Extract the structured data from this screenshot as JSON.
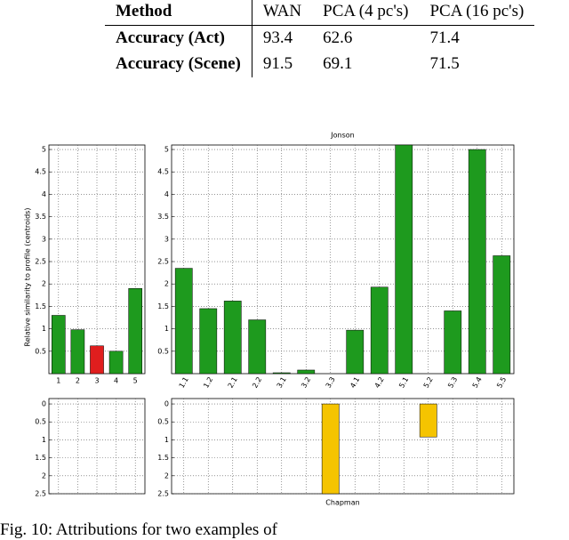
{
  "table": {
    "header": [
      "Method",
      "WAN",
      "PCA (4 pc's)",
      "PCA (16 pc's)"
    ],
    "rows": [
      [
        "Accuracy (Act)",
        "93.4",
        "62.6",
        "71.4"
      ],
      [
        "Accuracy (Scene)",
        "91.5",
        "69.1",
        "71.5"
      ]
    ]
  },
  "chart_data": [
    {
      "type": "bar",
      "y_label": "Relative similarity to profile (centroids)",
      "categories": [
        "1",
        "2",
        "3",
        "4",
        "5"
      ],
      "values": [
        1.3,
        0.98,
        0.62,
        0.5,
        1.9
      ],
      "colors": [
        "#1e9a1e",
        "#1e9a1e",
        "#e01e1e",
        "#1e9a1e",
        "#1e9a1e"
      ],
      "ylim": [
        0,
        5.1
      ],
      "yticks": [
        0.5,
        1,
        1.5,
        2,
        2.5,
        3,
        3.5,
        4,
        4.5,
        5
      ],
      "grid": true
    },
    {
      "type": "bar",
      "title": "Jonson",
      "categories": [
        "1.1",
        "1.2",
        "2.1",
        "2.2",
        "3.1",
        "3.2",
        "3.3",
        "4.1",
        "4.2",
        "5.1",
        "5.2",
        "5.3",
        "5.4",
        "5.5"
      ],
      "values": [
        2.35,
        1.45,
        1.62,
        1.2,
        0.02,
        0.08,
        0,
        0.97,
        1.93,
        5.1,
        0,
        1.4,
        5.0,
        2.63
      ],
      "color": "#1e9a1e",
      "ylim": [
        0,
        5.1
      ],
      "yticks": [
        0.5,
        1,
        1.5,
        2,
        2.5,
        3,
        3.5,
        4,
        4.5,
        5
      ],
      "grid": true
    },
    {
      "type": "bar",
      "values": [
        0,
        0,
        0,
        0,
        0
      ],
      "color": "#f5c400",
      "inverted": true,
      "ylim": [
        -0.15,
        2.5
      ],
      "yticks": [
        0,
        0.5,
        1,
        1.5,
        2,
        2.5
      ],
      "grid": true
    },
    {
      "type": "bar",
      "title": "Chapman",
      "values": [
        0,
        0,
        0,
        0,
        0,
        0,
        2.5,
        0,
        0,
        0,
        0.92,
        0,
        0,
        0
      ],
      "color": "#f5c400",
      "inverted": true,
      "ylim": [
        -0.15,
        2.5
      ],
      "yticks": [
        0,
        0.5,
        1,
        1.5,
        2,
        2.5
      ],
      "grid": true
    }
  ],
  "caption": "Fig. 10: Attributions for two examples of"
}
